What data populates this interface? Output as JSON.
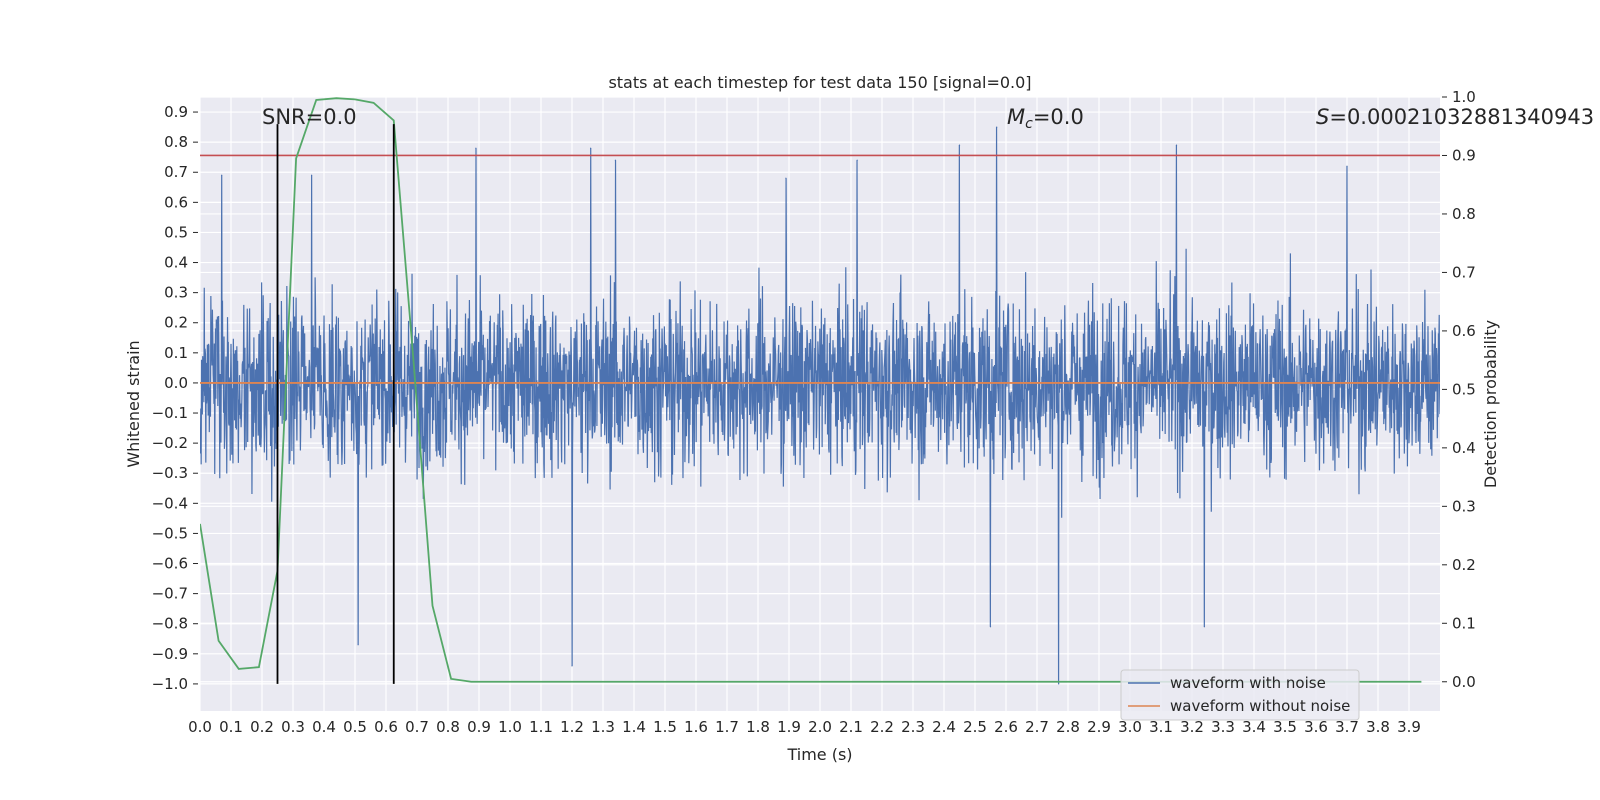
{
  "chart_data": {
    "type": "line",
    "title": "stats at each timestep for test data 150 [signal=0.0]",
    "xlabel": "Time (s)",
    "ylabel": "Whitened strain",
    "y2label": "Detection probability",
    "xlim": [
      0.0,
      4.0
    ],
    "ylim": [
      -1.09,
      0.95
    ],
    "y2lim": [
      -0.05,
      1.0
    ],
    "x_ticks": [
      "0.0",
      "0.1",
      "0.2",
      "0.3",
      "0.4",
      "0.5",
      "0.6",
      "0.7",
      "0.8",
      "0.9",
      "1.0",
      "1.1",
      "1.2",
      "1.3",
      "1.4",
      "1.5",
      "1.6",
      "1.7",
      "1.8",
      "1.9",
      "2.0",
      "2.1",
      "2.2",
      "2.3",
      "2.4",
      "2.5",
      "2.6",
      "2.7",
      "2.8",
      "2.9",
      "3.0",
      "3.1",
      "3.2",
      "3.3",
      "3.4",
      "3.5",
      "3.6",
      "3.7",
      "3.8",
      "3.9"
    ],
    "y_ticks": [
      "0.9",
      "0.8",
      "0.7",
      "0.6",
      "0.5",
      "0.4",
      "0.3",
      "0.2",
      "0.1",
      "0.0",
      "−0.1",
      "−0.2",
      "−0.3",
      "−0.4",
      "−0.5",
      "−0.6",
      "−0.7",
      "−0.8",
      "−0.9",
      "−1.0"
    ],
    "y2_ticks": [
      "1.0",
      "0.9",
      "0.8",
      "0.7",
      "0.6",
      "0.5",
      "0.4",
      "0.3",
      "0.2",
      "0.1",
      "0.0"
    ],
    "grid": true,
    "legend_position": "lower right",
    "annotations": {
      "snr": "SNR=0.0",
      "mc_symbol": "M",
      "mc_sub": "c",
      "mc_value": "=0.0",
      "s_symbol": "S",
      "s_value": "=0.00021032881340943"
    },
    "series": [
      {
        "name": "waveform with noise",
        "color": "#4c72b0",
        "axis": "left",
        "summary": "dense noise between about -0.7 and 0.7, occasional spikes",
        "spikes": [
          {
            "x": 0.07,
            "y": 0.69
          },
          {
            "x": 0.25,
            "y": 0.54
          },
          {
            "x": 0.36,
            "y": 0.69
          },
          {
            "x": 0.51,
            "y": -0.87
          },
          {
            "x": 0.89,
            "y": 0.78
          },
          {
            "x": 1.2,
            "y": -0.94
          },
          {
            "x": 1.26,
            "y": 0.78
          },
          {
            "x": 1.34,
            "y": 0.74
          },
          {
            "x": 1.89,
            "y": 0.68
          },
          {
            "x": 2.12,
            "y": 0.74
          },
          {
            "x": 2.45,
            "y": 0.79
          },
          {
            "x": 2.55,
            "y": -0.81
          },
          {
            "x": 2.57,
            "y": 0.85
          },
          {
            "x": 2.77,
            "y": -1.0
          },
          {
            "x": 3.15,
            "y": 0.79
          },
          {
            "x": 3.24,
            "y": -0.81
          },
          {
            "x": 3.7,
            "y": 0.72
          }
        ]
      },
      {
        "name": "waveform without noise",
        "color": "#dd8452",
        "axis": "left",
        "x": [
          0.0,
          4.0
        ],
        "y": [
          0.0,
          0.0
        ]
      },
      {
        "name": "",
        "color": "#55a868",
        "axis": "right",
        "x": [
          0.0,
          0.06,
          0.125,
          0.19,
          0.25,
          0.31,
          0.375,
          0.44,
          0.5,
          0.56,
          0.625,
          0.69,
          0.75,
          0.81,
          0.875,
          0.94,
          1.0,
          2.0,
          3.0,
          3.94
        ],
        "y": [
          0.27,
          0.07,
          0.022,
          0.025,
          0.19,
          0.895,
          0.995,
          0.998,
          0.996,
          0.99,
          0.96,
          0.54,
          0.13,
          0.005,
          0.0,
          0.0,
          0.0,
          0.0,
          0.0,
          0.0
        ]
      }
    ],
    "threshold": {
      "axis": "right",
      "y": 0.9,
      "color": "#c44e52"
    },
    "vlines": [
      {
        "x": 0.25,
        "ymin": -1.0,
        "ymax": 0.86
      },
      {
        "x": 0.625,
        "ymin": -1.0,
        "ymax": 0.86
      }
    ]
  }
}
